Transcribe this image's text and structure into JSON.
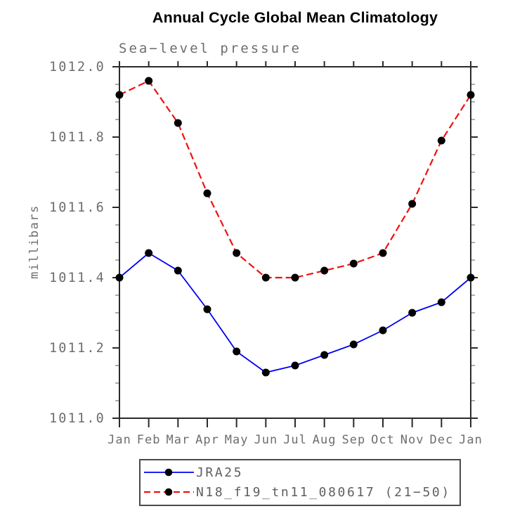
{
  "page": {
    "background": "#ffffff"
  },
  "chart_data": {
    "type": "line",
    "title": "Annual Cycle Global Mean Climatology",
    "subtitle": "Sea−level pressure",
    "ylabel": "millibars",
    "xlabel": "",
    "categories": [
      "Jan",
      "Feb",
      "Mar",
      "Apr",
      "May",
      "Jun",
      "Jul",
      "Aug",
      "Sep",
      "Oct",
      "Nov",
      "Dec",
      "Jan"
    ],
    "ylim": [
      1011.0,
      1012.0
    ],
    "ytick_major_step": 0.2,
    "ytick_minor_step": 0.05,
    "ytick_labels": [
      "1011.0",
      "1011.2",
      "1011.4",
      "1011.6",
      "1011.8",
      "1012.0"
    ],
    "grid": false,
    "legend_position": "bottom-outside",
    "series": [
      {
        "name": "JRA25",
        "color": "#0000f0",
        "line_style": "solid",
        "line_width": 1.8,
        "marker": "filled-circle",
        "marker_color": "#000000",
        "values": [
          1011.4,
          1011.47,
          1011.42,
          1011.31,
          1011.19,
          1011.13,
          1011.15,
          1011.18,
          1011.21,
          1011.25,
          1011.3,
          1011.33,
          1011.4
        ]
      },
      {
        "name": "N18_f19_tn11_080617 (21−50)",
        "color": "#f01010",
        "line_style": "dashed",
        "line_width": 2.2,
        "marker": "filled-circle",
        "marker_color": "#000000",
        "values": [
          1011.92,
          1011.96,
          1011.84,
          1011.64,
          1011.47,
          1011.4,
          1011.4,
          1011.42,
          1011.44,
          1011.47,
          1011.61,
          1011.79,
          1011.92
        ]
      }
    ]
  },
  "colors": {
    "axis": "#2b2b2b",
    "major_tick": "#2b2b2b",
    "minor_tick": "#a2a2a2",
    "tick_label": "#6e6e6e",
    "title_text": "#000000"
  }
}
